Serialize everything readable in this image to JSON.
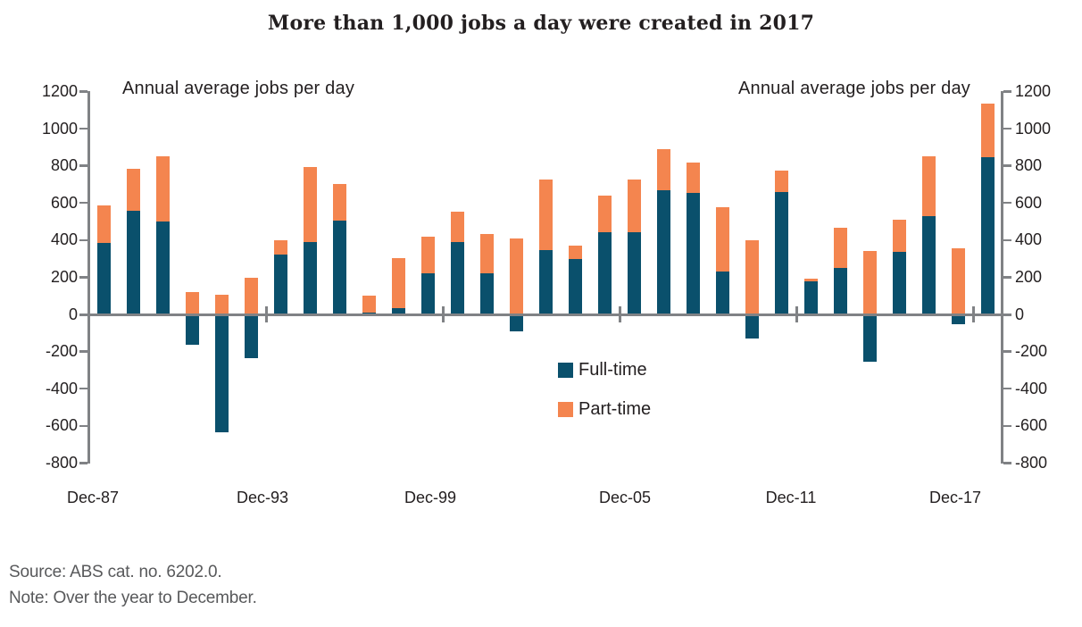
{
  "title": "More than 1,000 jobs a day were created in 2017",
  "axis_captions": {
    "left": "Annual average jobs per day",
    "right": "Annual average jobs per day"
  },
  "legend": {
    "items": [
      {
        "label": "Full-time",
        "color": "#0A506C"
      },
      {
        "label": "Part-time",
        "color": "#F4854F"
      }
    ]
  },
  "footer": {
    "source": "Source: ABS cat. no. 6202.0.",
    "note": "Note: Over the year to December."
  },
  "colors": {
    "full_time": "#0A506C",
    "part_time": "#F4854F",
    "axis_gray": "#808285",
    "title_text": "#231F20",
    "footer_text": "#58595B"
  },
  "chart_data": {
    "type": "bar",
    "stacked": true,
    "title": "More than 1,000 jobs a day were created in 2017",
    "ylabel": "Annual average jobs per day",
    "xlabel": "",
    "grid": false,
    "legend_position": "center-right",
    "ylim": [
      -800,
      1200
    ],
    "y_ticks": [
      1200,
      1000,
      800,
      600,
      400,
      200,
      0,
      -200,
      -400,
      -600,
      -800
    ],
    "x_tick_labels": [
      "Dec-87",
      "Dec-93",
      "Dec-99",
      "Dec-05",
      "Dec-11",
      "Dec-17"
    ],
    "categories": [
      "Dec-87",
      "Dec-88",
      "Dec-89",
      "Dec-90",
      "Dec-91",
      "Dec-92",
      "Dec-93",
      "Dec-94",
      "Dec-95",
      "Dec-96",
      "Dec-97",
      "Dec-98",
      "Dec-99",
      "Dec-00",
      "Dec-01",
      "Dec-02",
      "Dec-03",
      "Dec-04",
      "Dec-05",
      "Dec-06",
      "Dec-07",
      "Dec-08",
      "Dec-09",
      "Dec-10",
      "Dec-11",
      "Dec-12",
      "Dec-13",
      "Dec-14",
      "Dec-15",
      "Dec-16",
      "Dec-17"
    ],
    "series": [
      {
        "name": "Full-time",
        "color": "#0A506C",
        "values": [
          385,
          560,
          500,
          -165,
          -635,
          -235,
          320,
          390,
          505,
          10,
          35,
          220,
          390,
          220,
          -90,
          345,
          300,
          440,
          440,
          670,
          655,
          230,
          -130,
          660,
          180,
          250,
          -255,
          335,
          530,
          -55,
          845
        ]
      },
      {
        "name": "Part-time",
        "color": "#F4854F",
        "values": [
          200,
          225,
          350,
          120,
          105,
          195,
          80,
          405,
          195,
          90,
          270,
          200,
          165,
          215,
          410,
          380,
          70,
          200,
          285,
          220,
          160,
          345,
          400,
          115,
          10,
          215,
          340,
          175,
          320,
          355,
          290
        ]
      }
    ]
  }
}
